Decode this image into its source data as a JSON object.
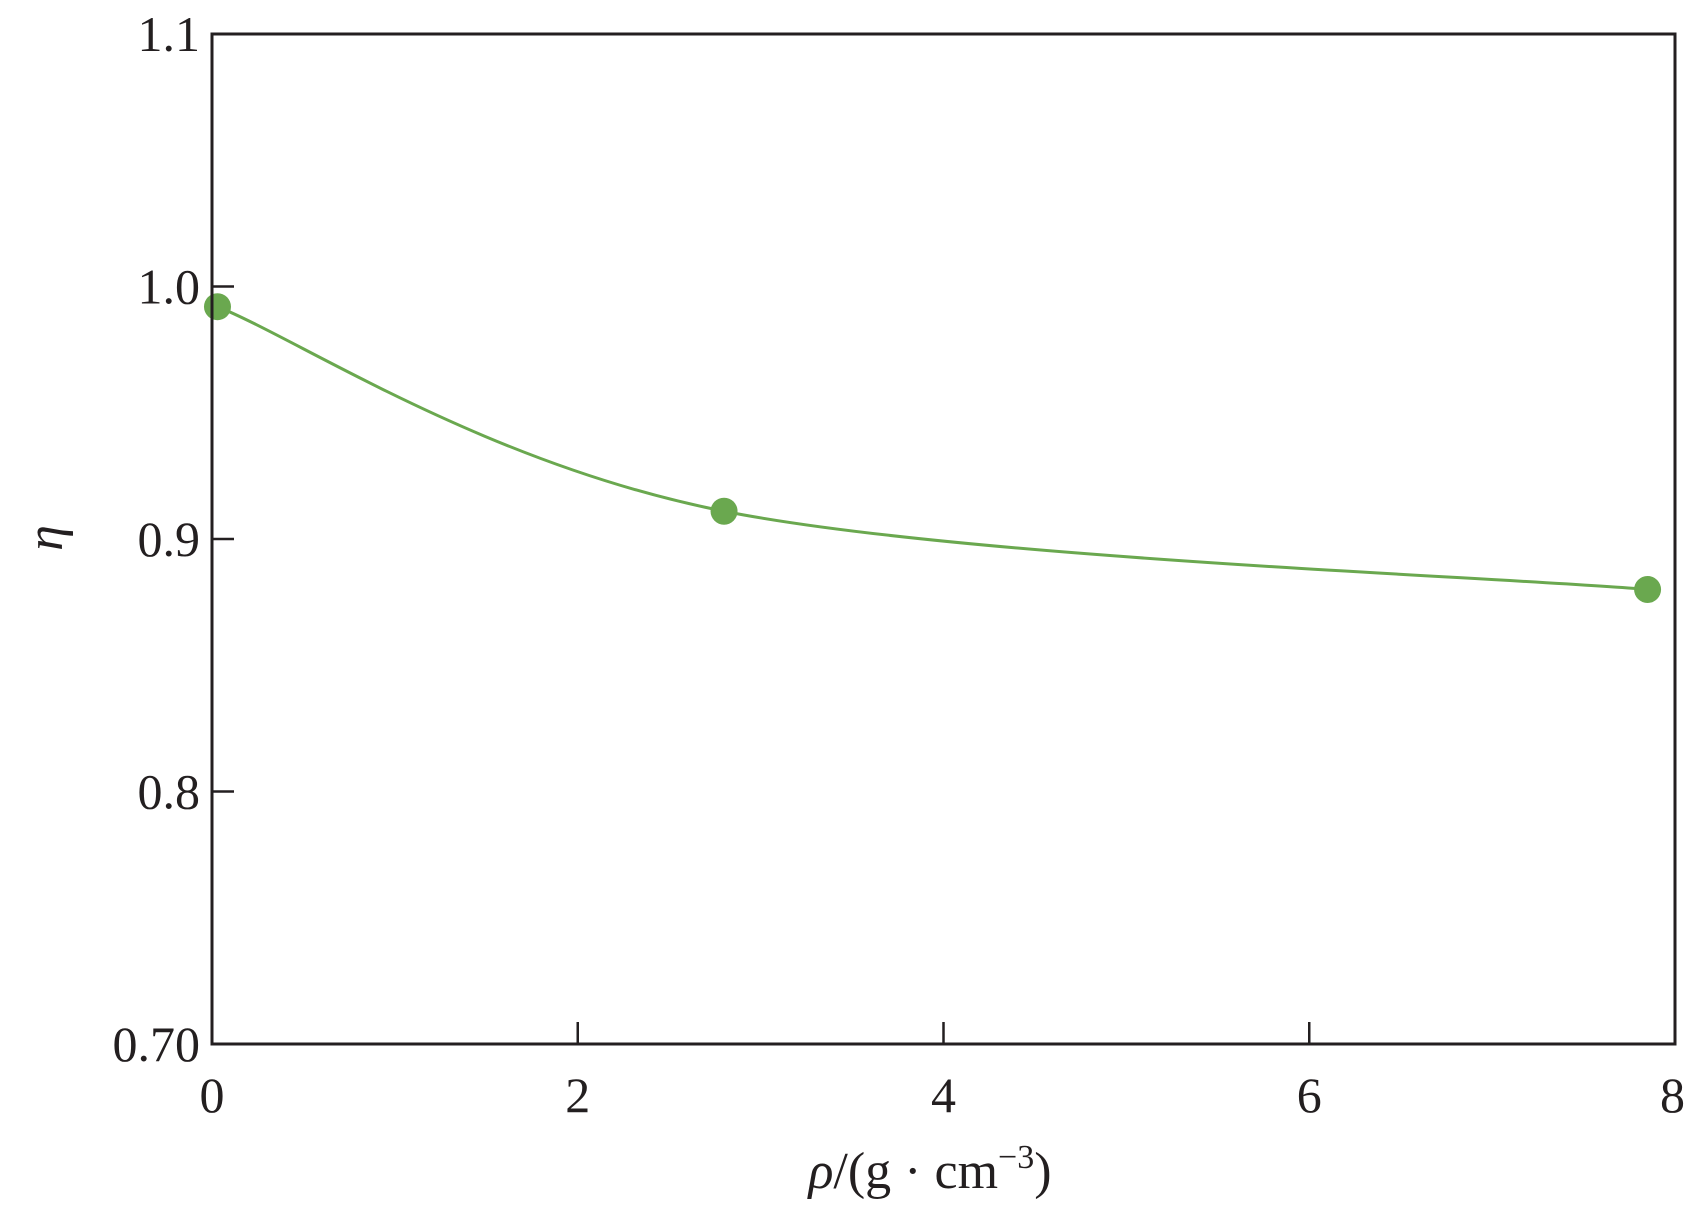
{
  "chart_data": {
    "type": "line",
    "title": "",
    "xlabel": {
      "symbol": "ρ",
      "unit": "/(g · cm",
      "exponent": "−3",
      "close": ")"
    },
    "ylabel": "η",
    "xlim": [
      0,
      8
    ],
    "ylim": [
      0.7,
      1.1
    ],
    "x_ticks": [
      0,
      2,
      4,
      6,
      8
    ],
    "x_tick_labels": [
      "0",
      "2",
      "4",
      "6",
      "8"
    ],
    "y_ticks": [
      0.7,
      0.8,
      0.9,
      1.0,
      1.1
    ],
    "y_tick_labels": [
      "0.70",
      "0.8",
      "0.9",
      "1.0",
      "1.1"
    ],
    "grid": false,
    "legend": "none",
    "series": [
      {
        "color": "#6aa84f",
        "marker": "circle",
        "smooth": true,
        "points": [
          {
            "x": 0.03,
            "y": 0.992
          },
          {
            "x": 2.8,
            "y": 0.911
          },
          {
            "x": 7.85,
            "y": 0.88
          }
        ]
      }
    ]
  }
}
